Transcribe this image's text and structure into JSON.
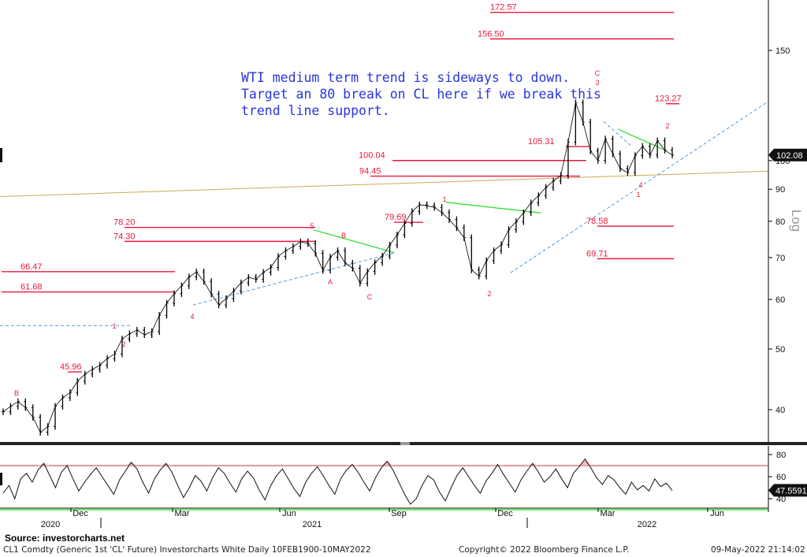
{
  "annotation": {
    "lines": [
      "WTI medium term trend is sideways to down.",
      "Target an 80 break on CL here if we break this",
      "trend line support."
    ]
  },
  "source_label": "Source: investorcharts.net",
  "footer": {
    "left": "CL1 Comdty (Generic 1st 'CL' Future) Investorcharts White  Daily 10FEB1900-10MAY2022",
    "center": "Copyright© 2022 Bloomberg Finance L.P.",
    "right": "09-May-2022 21:14:02"
  },
  "colors": {
    "annotation": "#2b35d8",
    "levels": "#e8193c",
    "trend_green": "#22dd22",
    "trend_blue": "#4a9be0",
    "long_trend": "#c8aa55",
    "candles": "#000000",
    "rsi_overbought_fill": "#f5b5b5"
  },
  "chart_data": [
    {
      "type": "line",
      "y_scale": "log",
      "ylabel": "Log",
      "y_ticks": [
        40,
        50,
        60,
        70,
        80,
        90,
        100,
        150
      ],
      "x_ticks": [
        "Dec",
        "Mar",
        "Jun",
        "Sep",
        "Dec",
        "Mar",
        "Jun"
      ],
      "x_year_labels": [
        "2020",
        "2021",
        "2022"
      ],
      "last_price": "102.08",
      "series": [
        {
          "values": [
            39.7,
            40.5,
            41.2,
            40.3,
            38.9,
            36.8,
            37.6,
            40.5,
            41.8,
            42.6,
            44.4,
            45.6,
            46.4,
            47.1,
            48.3,
            49.1,
            51.9,
            52.9,
            53.6,
            52.7,
            53.3,
            56.6,
            59.2,
            61.3,
            63.1,
            65.2,
            66.4,
            64.1,
            61.2,
            58.8,
            60.2,
            61.9,
            63.8,
            65.1,
            64.6,
            66.3,
            67.5,
            70.3,
            71.8,
            72.9,
            74.2,
            73.7,
            71.1,
            66.8,
            70.1,
            71.8,
            68.6,
            67.3,
            63.7,
            66.5,
            68.7,
            70.4,
            73.3,
            76.1,
            79.4,
            82.9,
            85.0,
            84.7,
            84.2,
            82.6,
            80.5,
            78.1,
            75.3,
            66.9,
            65.4,
            69.2,
            71.8,
            73.4,
            77.6,
            79.9,
            82.6,
            85.6,
            87.9,
            90.6,
            92.8,
            94.7,
            107.1,
            123.7,
            115.2,
            103.6,
            100.1,
            108.3,
            102.5,
            97.1,
            95.7,
            101.9,
            105.4,
            102.1,
            107.6,
            103.9,
            102.08
          ]
        }
      ],
      "levels": [
        {
          "label": "172.57",
          "value": 172.57
        },
        {
          "label": "156.50",
          "value": 156.5
        },
        {
          "label": "123.27",
          "value": 123.27
        },
        {
          "label": "105.31",
          "value": 105.31
        },
        {
          "label": "100.04",
          "value": 100.04
        },
        {
          "label": "94.45",
          "value": 94.45
        },
        {
          "label": "79.69",
          "value": 79.69
        },
        {
          "label": "78.58",
          "value": 78.58
        },
        {
          "label": "78.20",
          "value": 78.2
        },
        {
          "label": "74.30",
          "value": 74.3
        },
        {
          "label": "69.71",
          "value": 69.71
        },
        {
          "label": "66.47",
          "value": 66.47
        },
        {
          "label": "61.68",
          "value": 61.68
        },
        {
          "label": "45.96",
          "value": 45.96
        }
      ],
      "wave_labels": [
        "B",
        "1",
        "2",
        "4",
        "5",
        "B",
        "A",
        "C",
        "1",
        "2",
        "C",
        "3",
        "2",
        "4",
        "1"
      ]
    },
    {
      "type": "line",
      "y_ticks": [
        40,
        60,
        80
      ],
      "last_value": "47.5591",
      "guide_levels": [
        70,
        30
      ],
      "series": [
        {
          "values": [
            45,
            52,
            40,
            58,
            63,
            55,
            66,
            72,
            61,
            50,
            64,
            70,
            58,
            47,
            55,
            62,
            68,
            60,
            52,
            44,
            57,
            65,
            73,
            67,
            55,
            45,
            58,
            66,
            72,
            64,
            52,
            41,
            50,
            61,
            56,
            47,
            59,
            68,
            63,
            54,
            46,
            58,
            65,
            59,
            48,
            39,
            52,
            61,
            67,
            58,
            49,
            42,
            55,
            63,
            69,
            61,
            52,
            44,
            58,
            66,
            71,
            64,
            55,
            47,
            59,
            68,
            74,
            66,
            55,
            44,
            35,
            40,
            52,
            61,
            57,
            46,
            38,
            50,
            61,
            68,
            60,
            52,
            45,
            56,
            63,
            71,
            62,
            54,
            46,
            57,
            65,
            72,
            64,
            55,
            60,
            67,
            58,
            50,
            63,
            69,
            76,
            68,
            59,
            53,
            61,
            57,
            50,
            44,
            55,
            48,
            52,
            47,
            58,
            51,
            54,
            47.5591
          ]
        }
      ]
    }
  ]
}
